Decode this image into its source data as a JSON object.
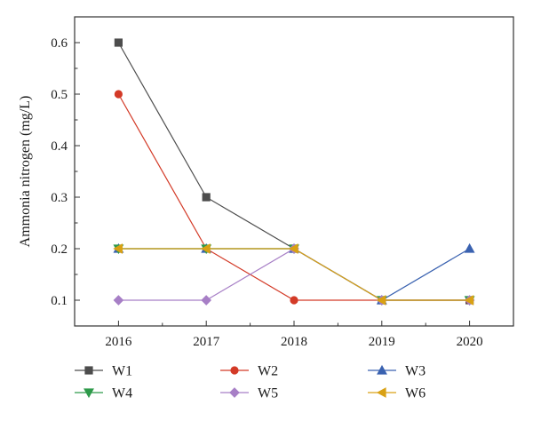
{
  "chart_data": {
    "type": "line",
    "categories": [
      "2016",
      "2017",
      "2018",
      "2019",
      "2020"
    ],
    "x": [
      2016,
      2017,
      2018,
      2019,
      2020
    ],
    "xlim": [
      2015.5,
      2020.5
    ],
    "ylim": [
      0.05,
      0.65
    ],
    "yticks": [
      0.1,
      0.2,
      0.3,
      0.4,
      0.5,
      0.6
    ],
    "ytick_labels": [
      "0.1",
      "0.2",
      "0.3",
      "0.4",
      "0.5",
      "0.6"
    ],
    "xlabel": "",
    "ylabel": "Ammonia nitrogen (mg/L)",
    "grid": false,
    "legend_position": "bottom",
    "series": [
      {
        "name": "W1",
        "color": "#4d4d4d",
        "marker": "square",
        "values": [
          0.6,
          0.3,
          0.2,
          0.1,
          0.1
        ]
      },
      {
        "name": "W2",
        "color": "#d33a27",
        "marker": "circle",
        "values": [
          0.5,
          0.2,
          0.1,
          0.1,
          0.1
        ]
      },
      {
        "name": "W3",
        "color": "#3a62b0",
        "marker": "triangle-up",
        "values": [
          0.2,
          0.2,
          0.2,
          0.1,
          0.2
        ]
      },
      {
        "name": "W4",
        "color": "#2e9a4a",
        "marker": "triangle-down",
        "values": [
          0.2,
          0.2,
          0.2,
          0.1,
          0.1
        ]
      },
      {
        "name": "W5",
        "color": "#a77fc6",
        "marker": "diamond",
        "values": [
          0.1,
          0.1,
          0.2,
          0.1,
          0.1
        ]
      },
      {
        "name": "W6",
        "color": "#d9a114",
        "marker": "triangle-left",
        "values": [
          0.2,
          0.2,
          0.2,
          0.1,
          0.1
        ]
      }
    ]
  }
}
